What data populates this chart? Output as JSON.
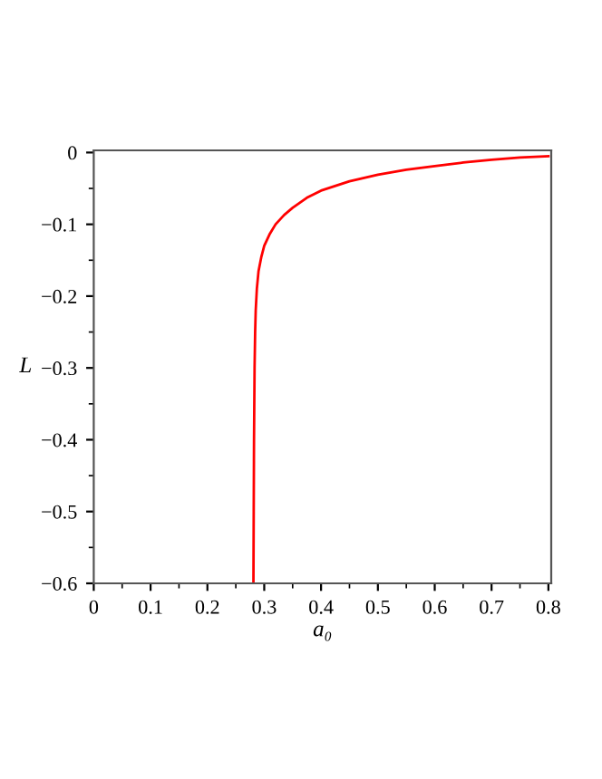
{
  "chart_data": {
    "type": "line",
    "xlabel": "a₀",
    "ylabel": "L",
    "series": [
      {
        "color": "#ff0000",
        "x": [
          0.281,
          0.2815,
          0.282,
          0.283,
          0.284,
          0.285,
          0.287,
          0.29,
          0.295,
          0.3,
          0.31,
          0.32,
          0.335,
          0.35,
          0.375,
          0.4,
          0.45,
          0.5,
          0.55,
          0.6,
          0.65,
          0.7,
          0.75,
          0.8
        ],
        "values": [
          -0.6,
          -0.5,
          -0.4,
          -0.3,
          -0.25,
          -0.22,
          -0.19,
          -0.165,
          -0.145,
          -0.13,
          -0.113,
          -0.1,
          -0.087,
          -0.077,
          -0.063,
          -0.053,
          -0.04,
          -0.031,
          -0.024,
          -0.019,
          -0.014,
          -0.01,
          -0.007,
          -0.005
        ]
      }
    ],
    "xlim": [
      0,
      0.805
    ],
    "ylim": [
      -0.6,
      0.003
    ],
    "xticks": [
      0,
      0.1,
      0.2,
      0.3,
      0.4,
      0.5,
      0.6,
      0.7,
      0.8
    ],
    "yticks": [
      {
        "value": 0,
        "label": "0"
      },
      {
        "value": -0.1,
        "label": "−0.1"
      },
      {
        "value": -0.2,
        "label": "−0.2"
      },
      {
        "value": -0.3,
        "label": "−0.3"
      },
      {
        "value": -0.4,
        "label": "−0.4"
      },
      {
        "value": -0.5,
        "label": "−0.5"
      },
      {
        "value": -0.6,
        "label": "−0.6"
      }
    ],
    "grid": false,
    "legend": false,
    "marker": "none",
    "line_style": "solid"
  }
}
